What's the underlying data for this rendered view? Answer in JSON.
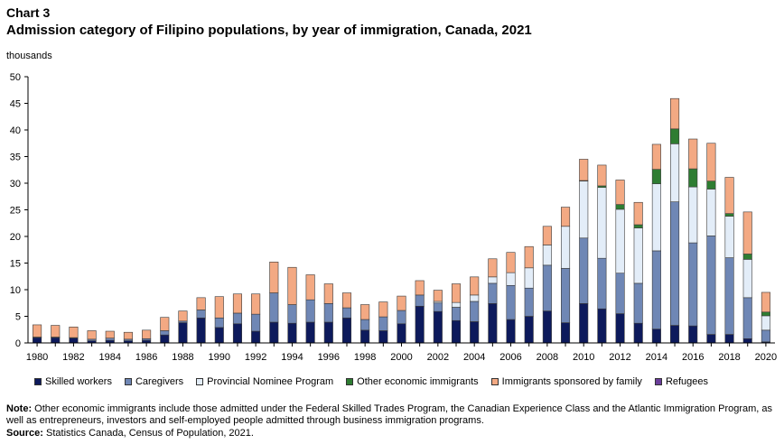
{
  "header": {
    "chart_number": "Chart 3",
    "title": "Admission category of Filipino  populations, by year of immigration, Canada, 2021",
    "units": "thousands"
  },
  "footer": {
    "note_label": "Note:",
    "note_text": "Other economic immigrants include those admitted under the Federal Skilled Trades Program, the Canadian Experience Class and the Atlantic Immigration Program, as well as entrepreneurs, investors and self-employed people admitted through business immigration programs.",
    "source_label": "Source:",
    "source_text": "Statistics Canada, Census of Population, 2021."
  },
  "chart_data": {
    "type": "bar",
    "stacked": true,
    "title": "Admission category of Filipino  populations, by year of immigration, Canada, 2021",
    "ylabel": "thousands",
    "ylim": [
      0,
      50
    ],
    "yticks": [
      0,
      5,
      10,
      15,
      20,
      25,
      30,
      35,
      40,
      45,
      50
    ],
    "xtick_labels": [
      "1980",
      "1982",
      "1984",
      "1986",
      "1988",
      "1990",
      "1992",
      "1994",
      "1996",
      "1998",
      "2000",
      "2002",
      "2004",
      "2006",
      "2008",
      "2010",
      "2012",
      "2014",
      "2016",
      "2018",
      "2020"
    ],
    "legend_position": "bottom",
    "grid": false,
    "categories": [
      "1980",
      "1981",
      "1982",
      "1983",
      "1984",
      "1985",
      "1986",
      "1987",
      "1988",
      "1989",
      "1990",
      "1991",
      "1992",
      "1993",
      "1994",
      "1995",
      "1996",
      "1997",
      "1998",
      "1999",
      "2000",
      "2001",
      "2002",
      "2003",
      "2004",
      "2005",
      "2006",
      "2007",
      "2008",
      "2009",
      "2010",
      "2011",
      "2012",
      "2013",
      "2014",
      "2015",
      "2016",
      "2017",
      "2018",
      "2019",
      "2020"
    ],
    "series": [
      {
        "name": "Skilled workers",
        "color": "#0d1a5c",
        "values": [
          1.0,
          1.0,
          0.9,
          0.4,
          0.5,
          0.4,
          0.5,
          1.5,
          3.8,
          4.7,
          2.9,
          3.6,
          2.2,
          3.9,
          3.7,
          3.9,
          3.9,
          4.7,
          2.4,
          2.3,
          3.6,
          6.9,
          5.9,
          4.2,
          4.0,
          7.4,
          4.4,
          5.0,
          6.0,
          3.8,
          7.4,
          6.4,
          5.5,
          3.7,
          2.6,
          3.3,
          3.2,
          1.6,
          1.6,
          0.8,
          0.2
        ]
      },
      {
        "name": "Caregivers",
        "color": "#6f87b5",
        "values": [
          0.1,
          0.1,
          0.1,
          0.3,
          0.4,
          0.3,
          0.3,
          0.8,
          0.3,
          1.5,
          1.8,
          2.0,
          3.2,
          5.5,
          3.5,
          4.2,
          3.5,
          1.9,
          2.0,
          2.6,
          2.5,
          2.1,
          1.6,
          2.5,
          3.8,
          3.8,
          6.4,
          5.3,
          8.6,
          10.2,
          12.3,
          9.5,
          7.6,
          7.5,
          14.7,
          23.2,
          15.6,
          18.5,
          14.4,
          7.7,
          2.2
        ]
      },
      {
        "name": "Provincial Nominee Program",
        "color": "#e3edf8",
        "values": [
          0,
          0,
          0,
          0,
          0,
          0,
          0,
          0,
          0,
          0,
          0,
          0,
          0,
          0,
          0,
          0,
          0,
          0,
          0,
          0,
          0,
          0,
          0.3,
          0.9,
          1.2,
          1.2,
          2.4,
          3.8,
          3.8,
          7.9,
          10.7,
          13.3,
          12.0,
          10.4,
          12.6,
          10.9,
          10.5,
          8.8,
          7.8,
          7.2,
          2.7
        ]
      },
      {
        "name": "Other economic immigrants",
        "color": "#2e7d32",
        "values": [
          0,
          0,
          0,
          0,
          0,
          0,
          0,
          0,
          0,
          0,
          0,
          0,
          0,
          0,
          0,
          0,
          0,
          0,
          0,
          0,
          0,
          0,
          0,
          0,
          0,
          0,
          0,
          0,
          0,
          0,
          0.1,
          0.3,
          0.9,
          0.6,
          2.7,
          2.8,
          3.4,
          1.5,
          0.5,
          1.0,
          0.7
        ]
      },
      {
        "name": "Immigrants sponsored by family",
        "color": "#f3a983",
        "values": [
          2.3,
          2.2,
          2.0,
          1.6,
          1.3,
          1.3,
          1.6,
          2.5,
          1.9,
          2.3,
          4.0,
          3.6,
          3.8,
          5.8,
          7.0,
          4.7,
          3.7,
          2.8,
          2.8,
          2.8,
          2.7,
          2.7,
          2.1,
          3.5,
          3.4,
          3.4,
          3.8,
          4.0,
          3.5,
          3.6,
          4.0,
          3.9,
          4.6,
          4.2,
          4.7,
          5.7,
          5.6,
          7.1,
          6.8,
          7.9,
          3.7
        ]
      },
      {
        "name": "Refugees",
        "color": "#6a3d9a",
        "values": [
          0,
          0,
          0,
          0,
          0,
          0,
          0,
          0,
          0,
          0,
          0,
          0,
          0,
          0,
          0,
          0,
          0,
          0,
          0,
          0,
          0,
          0,
          0,
          0,
          0,
          0,
          0,
          0,
          0,
          0,
          0,
          0,
          0,
          0,
          0,
          0,
          0,
          0,
          0,
          0,
          0
        ]
      }
    ]
  }
}
